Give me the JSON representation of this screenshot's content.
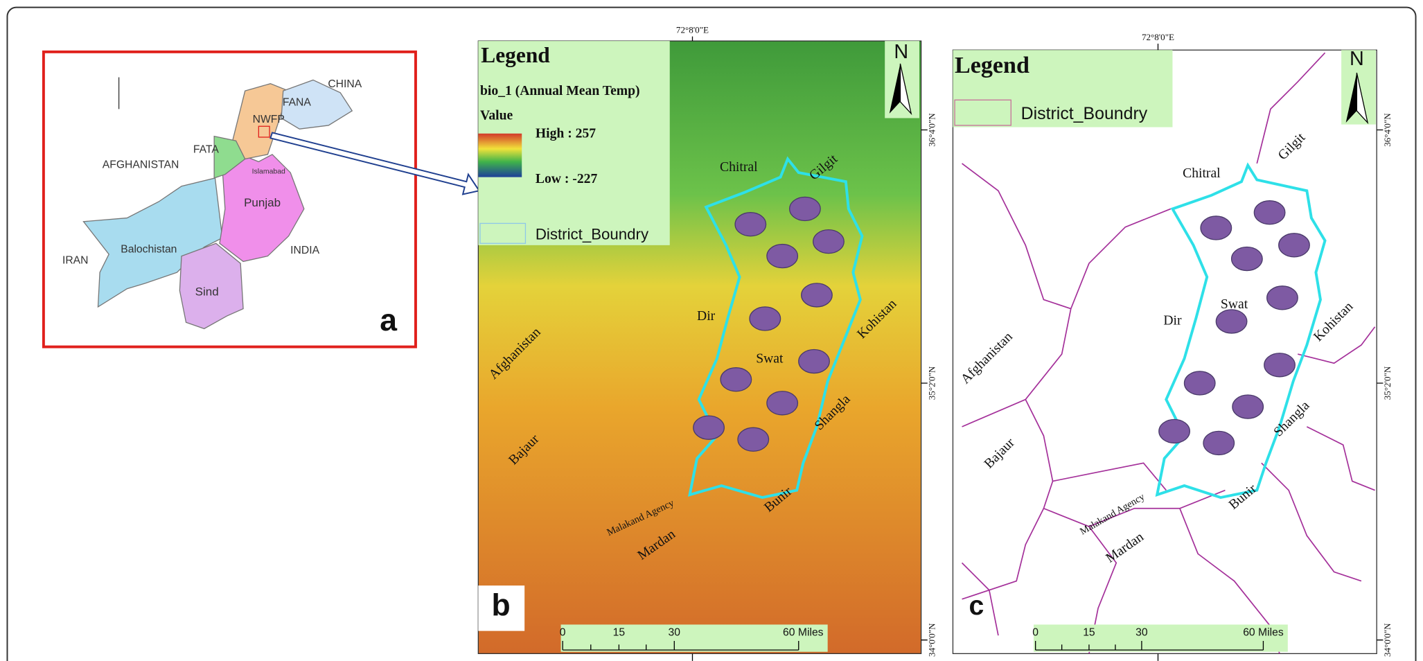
{
  "panel_a": {
    "label": "a",
    "places": [
      "CHINA",
      "FANA",
      "NWFP",
      "FATA",
      "AFGHANISTAN",
      "Islamabad",
      "Punjab",
      "IRAN",
      "Balochistan",
      "INDIA",
      "Sind"
    ]
  },
  "panel_b": {
    "label": "b",
    "legend": {
      "title": "Legend",
      "layer": "bio_1 (Annual Mean Temp)",
      "value": "Value",
      "high": "High : 257",
      "low": "Low : -227",
      "boundary": "District_Boundry"
    },
    "north": "N",
    "longitude": "72°8'0\"E",
    "latitudes": [
      "36°4'0\"N",
      "35°2'0\"N",
      "34°0'0\"N"
    ],
    "places": [
      "Chitral",
      "Gilgit",
      "Dir",
      "Swat",
      "Kohistan",
      "Afghanistan",
      "Bajaur",
      "Shangla",
      "Malakand Agency",
      "Bunir",
      "Mardan"
    ],
    "scale": [
      "0",
      "15",
      "30",
      "60 Miles"
    ]
  },
  "panel_c": {
    "label": "c",
    "legend": {
      "title": "Legend",
      "boundary": "District_Boundry"
    },
    "north": "N",
    "longitude": "72°8'0\"E",
    "latitudes": [
      "36°4'0\"N",
      "35°2'0\"N",
      "34°0'0\"N"
    ],
    "places": [
      "Chitral",
      "Gilgit",
      "Dir",
      "Swat",
      "Kohistan",
      "Afghanistan",
      "Bajaur",
      "Shangla",
      "Malakand Agency",
      "Bunir",
      "Mardan"
    ],
    "scale": [
      "0",
      "15",
      "30",
      "60 Miles"
    ]
  }
}
